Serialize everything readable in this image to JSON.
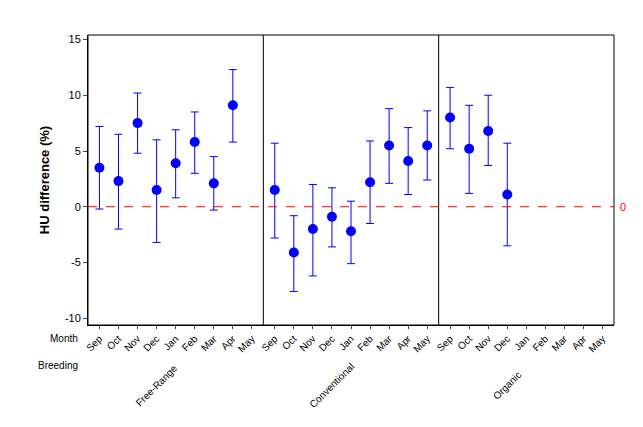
{
  "chart_data": {
    "type": "scatter",
    "y_label": "HU difference (%)",
    "x_labels": [
      "Month",
      "Breeding"
    ],
    "ylim": [
      -10.6,
      15.4
    ],
    "yticks": [
      -10,
      -5,
      0,
      5,
      10,
      15
    ],
    "color": "#0000ff",
    "marker": "circle",
    "categories": [
      "Sep",
      "Oct",
      "Nov",
      "Dec",
      "Jan",
      "Feb",
      "Mar",
      "Apr",
      "May"
    ],
    "reference_line": {
      "value": 0,
      "label": "0",
      "color": "#ff0000",
      "line_style": "dash"
    },
    "panels": [
      {
        "label": "Free-Range",
        "values": [
          3.5,
          2.3,
          7.5,
          1.5,
          3.9,
          5.8,
          2.1,
          9.1,
          null
        ],
        "ci_low": [
          -0.2,
          -2.0,
          4.8,
          -3.2,
          0.8,
          3.0,
          -0.3,
          5.8,
          null
        ],
        "ci_high": [
          7.2,
          6.5,
          10.2,
          6.0,
          6.9,
          8.5,
          4.5,
          12.3,
          null
        ]
      },
      {
        "label": "Conventional",
        "values": [
          1.5,
          -4.1,
          -2.0,
          -0.9,
          -2.2,
          2.2,
          5.5,
          4.1,
          5.5
        ],
        "ci_low": [
          -2.8,
          -7.6,
          -6.2,
          -3.6,
          -5.1,
          -1.5,
          2.1,
          1.1,
          2.4
        ],
        "ci_high": [
          5.7,
          -0.8,
          2.0,
          1.7,
          0.5,
          5.9,
          8.8,
          7.1,
          8.6
        ]
      },
      {
        "label": "Organic",
        "values": [
          8.0,
          5.2,
          6.8,
          1.1,
          null,
          null,
          null,
          null,
          null
        ],
        "ci_low": [
          5.2,
          1.2,
          3.7,
          -3.5,
          null,
          null,
          null,
          null,
          null
        ],
        "ci_high": [
          10.7,
          9.1,
          10.0,
          5.7,
          null,
          null,
          null,
          null,
          null
        ]
      }
    ]
  }
}
